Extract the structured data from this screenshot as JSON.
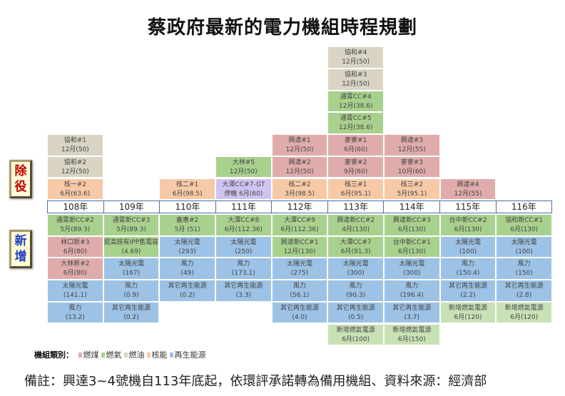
{
  "title": "蔡政府最新的電力機組時程規劃",
  "side_labels": {
    "retire": [
      "除",
      "役"
    ],
    "add": [
      "新",
      "增"
    ]
  },
  "colors": {
    "coal": "#e0acab",
    "gas": "#a9d18e",
    "oil": "#d9d4c3",
    "nuclear": "#f7c9a7",
    "renewable": "#9cc2e5",
    "newgas": "#c8e2b6",
    "standby": "#cfc3f2"
  },
  "years": [
    "108年",
    "109年",
    "110年",
    "111年",
    "112年",
    "113年",
    "114年",
    "115年",
    "116年"
  ],
  "retire": [
    [
      {
        "name": "核一#2",
        "detail": "6月(63.6)",
        "type": "nuclear"
      },
      {
        "name": "協和#2",
        "detail": "12月(50)",
        "type": "oil"
      },
      {
        "name": "協和#1",
        "detail": "12月(50)",
        "type": "oil"
      }
    ],
    [],
    [
      {
        "name": "核二#1",
        "detail": "6月(98.5)",
        "type": "nuclear"
      }
    ],
    [
      {
        "name": "大潭CC#7-GT",
        "detail": "停機 6月(60)",
        "type": "standby"
      },
      {
        "name": "大林#5",
        "detail": "12月(50)",
        "type": "gas"
      }
    ],
    [
      {
        "name": "核二#2",
        "detail": "3月(98.5)",
        "type": "nuclear"
      },
      {
        "name": "興達#2",
        "detail": "12月(50)",
        "type": "coal"
      },
      {
        "name": "興達#1",
        "detail": "12月(50)",
        "type": "coal"
      }
    ],
    [
      {
        "name": "核三#1",
        "detail": "6月(95.1)",
        "type": "nuclear"
      },
      {
        "name": "麥寮#2",
        "detail": "9月(60)",
        "type": "coal"
      },
      {
        "name": "麥寮#1",
        "detail": "6月(60)",
        "type": "coal"
      },
      {
        "name": "通霄CC#5",
        "detail": "12月(38.6)",
        "type": "gas"
      },
      {
        "name": "通霄CC#4",
        "detail": "12月(38.6)",
        "type": "gas"
      },
      {
        "name": "協和#3",
        "detail": "12月(50)",
        "type": "oil"
      },
      {
        "name": "協和#4",
        "detail": "12月(50)",
        "type": "oil"
      }
    ],
    [
      {
        "name": "核三#2",
        "detail": "5月(95.1)",
        "type": "nuclear"
      },
      {
        "name": "麥寮#3",
        "detail": "10月(60)",
        "type": "coal"
      },
      {
        "name": "興達#3",
        "detail": "12月(55)",
        "type": "coal"
      }
    ],
    [
      {
        "name": "興達#4",
        "detail": "12月(55)",
        "type": "coal"
      }
    ],
    []
  ],
  "add": [
    [
      {
        "name": "通霄新CC#2",
        "detail": "5月(89.3)",
        "type": "gas"
      },
      {
        "name": "林口新#3",
        "detail": "6月(80)",
        "type": "coal"
      },
      {
        "name": "大林新#2",
        "detail": "6月(80)",
        "type": "coal"
      },
      {
        "name": "太陽光電",
        "detail": "(141.1)",
        "type": "renewable"
      },
      {
        "name": "風力",
        "detail": "(13.2)",
        "type": "renewable"
      }
    ],
    [
      {
        "name": "通霄新CC#3",
        "detail": "5月(89.3)",
        "type": "gas"
      },
      {
        "name": "提高既有IPP售電容量",
        "detail": "(4.69)",
        "type": "gas"
      },
      {
        "name": "太陽光電",
        "detail": "(167)",
        "type": "renewable"
      },
      {
        "name": "風力",
        "detail": "(0.9)",
        "type": "renewable"
      },
      {
        "name": "其它再生能源",
        "detail": "(0.2)",
        "type": "renewable"
      }
    ],
    [
      {
        "name": "嘉惠#2",
        "detail": "5月 (51)",
        "type": "gas"
      },
      {
        "name": "太陽光電",
        "detail": "(293)",
        "type": "renewable"
      },
      {
        "name": "風力",
        "detail": "(49)",
        "type": "renewable"
      },
      {
        "name": "其它再生能源",
        "detail": "(0.2)",
        "type": "renewable"
      }
    ],
    [
      {
        "name": "大潭CC#8",
        "detail": "6月(112.36)",
        "type": "gas"
      },
      {
        "name": "太陽光電",
        "detail": "(250)",
        "type": "renewable"
      },
      {
        "name": "風力",
        "detail": "(173.1)",
        "type": "renewable"
      },
      {
        "name": "其它再生能源",
        "detail": "(3.3)",
        "type": "renewable"
      }
    ],
    [
      {
        "name": "大潭CC#9",
        "detail": "6月(112.36)",
        "type": "gas"
      },
      {
        "name": "興達新CC#1",
        "detail": "12月(130)",
        "type": "gas"
      },
      {
        "name": "太陽光電",
        "detail": "(275)",
        "type": "renewable"
      },
      {
        "name": "風力",
        "detail": "(56.1)",
        "type": "renewable"
      },
      {
        "name": "其它再生能源",
        "detail": "(4.0)",
        "type": "renewable"
      }
    ],
    [
      {
        "name": "興達新CC#2",
        "detail": "4月(130)",
        "type": "gas"
      },
      {
        "name": "大潭CC#7",
        "detail": "6月(91.3)",
        "type": "gas"
      },
      {
        "name": "太陽光電",
        "detail": "(300)",
        "type": "renewable"
      },
      {
        "name": "風力",
        "detail": "(90.3)",
        "type": "renewable"
      },
      {
        "name": "其它再生能源",
        "detail": "(0.5)",
        "type": "renewable"
      },
      {
        "name": "新增燃氣電源",
        "detail": "6月(100)",
        "type": "newgas"
      }
    ],
    [
      {
        "name": "興達新CC#3",
        "detail": "6月(130)",
        "type": "gas"
      },
      {
        "name": "台中新CC#1",
        "detail": "6月(130)",
        "type": "gas"
      },
      {
        "name": "太陽光電",
        "detail": "(300)",
        "type": "renewable"
      },
      {
        "name": "風力",
        "detail": "(196.4)",
        "type": "renewable"
      },
      {
        "name": "其它再生能源",
        "detail": "(3.7)",
        "type": "renewable"
      },
      {
        "name": "新增燃氣電源",
        "detail": "6月(150)",
        "type": "newgas"
      }
    ],
    [
      {
        "name": "台中新CC#2",
        "detail": "6月(130)",
        "type": "gas"
      },
      {
        "name": "太陽光電",
        "detail": "(100)",
        "type": "renewable"
      },
      {
        "name": "風力",
        "detail": "(150.4)",
        "type": "renewable"
      },
      {
        "name": "其它再生能源",
        "detail": "(2.2)",
        "type": "renewable"
      },
      {
        "name": "新增燃氣電源",
        "detail": "6月(120)",
        "type": "newgas"
      }
    ],
    [
      {
        "name": "協和新CC#1",
        "detail": "6月(130)",
        "type": "gas"
      },
      {
        "name": "太陽光電",
        "detail": "(100)",
        "type": "renewable"
      },
      {
        "name": "風力",
        "detail": "(150)",
        "type": "renewable"
      },
      {
        "name": "其它再生能源",
        "detail": "(2.8)",
        "type": "renewable"
      },
      {
        "name": "新增燃氣電源",
        "detail": "6月(120)",
        "type": "newgas"
      }
    ]
  ],
  "legend": {
    "label": "機組類別：",
    "items": [
      {
        "label": "燃煤",
        "type": "coal"
      },
      {
        "label": "燃氣",
        "type": "gas"
      },
      {
        "label": "燃油",
        "type": "oil"
      },
      {
        "label": "核能",
        "type": "nuclear"
      },
      {
        "label": "再生能源",
        "type": "renewable"
      }
    ]
  },
  "note": "備註：興達3~4號機自113年底起，依環評承諾轉為備用機組、資料來源：經濟部"
}
